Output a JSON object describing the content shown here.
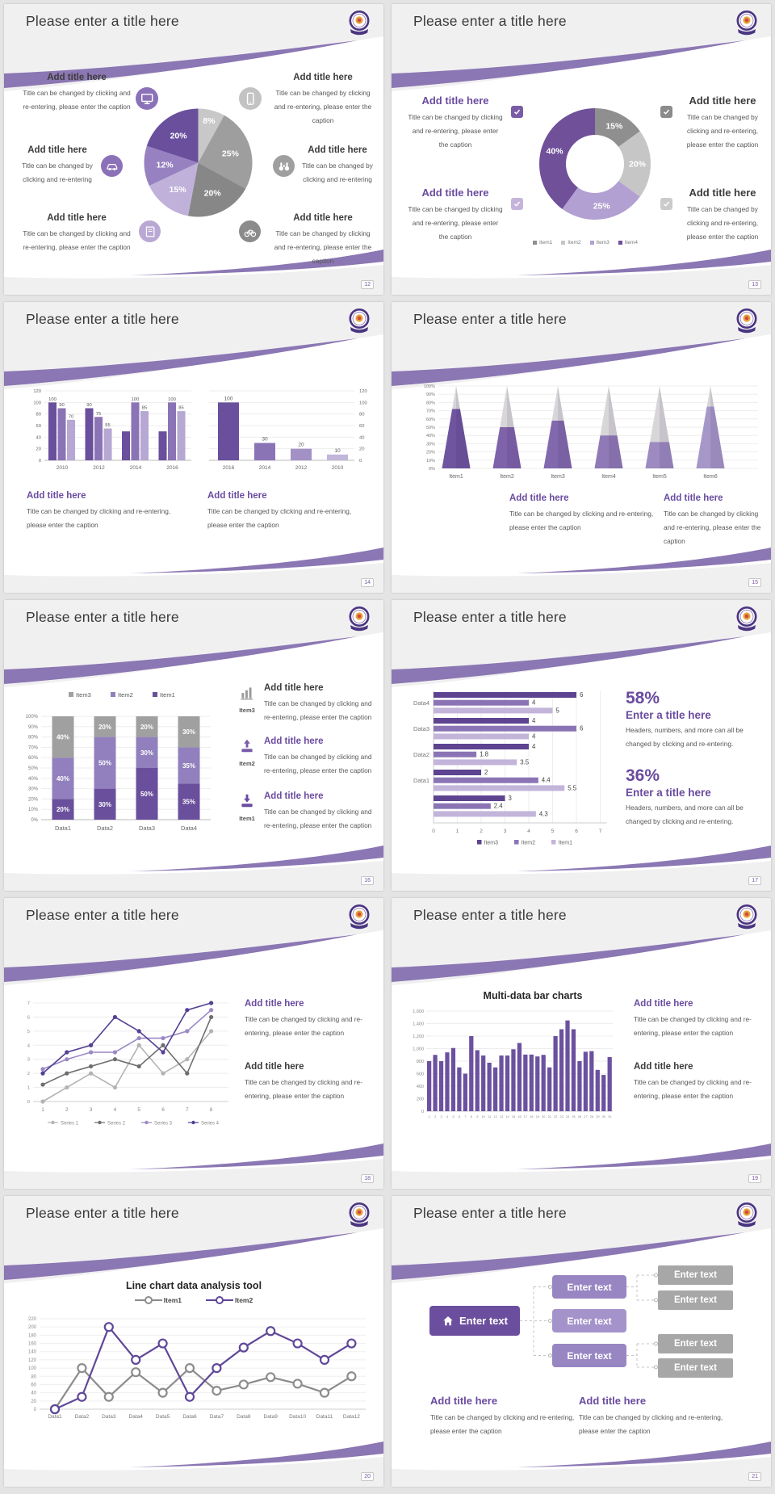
{
  "common": {
    "slide_title": "Please enter a title here",
    "add_title": "Add title here",
    "caption_long": "Title can be changed by clicking and re-entering, please enter the caption",
    "caption_short": "Title can be changed by clicking and re-entering",
    "stat_caption": "Headers, numbers, and more can all be changed by clicking and re-entering."
  },
  "colors": {
    "accent": "#6a4b9f",
    "wave": "#8b77b3",
    "band": "#f1f0f1",
    "purple_dark": "#6a4f9d",
    "purple_mid": "#8b74b5",
    "purple_light": "#b6a7d3",
    "gray_dark": "#878787",
    "gray_mid": "#9e9e9e",
    "gray_light": "#c8c8c8",
    "title_text": "#3a3a3a",
    "caption_text": "#575757"
  },
  "slides": [
    {
      "number": "12",
      "callouts": [
        {
          "icon": "monitor-icon",
          "icon_bg": "#8b72b8",
          "title": "Add title here",
          "title_color": "#3c3c3c",
          "caption": "Title can be changed by clicking and re-entering, please enter the caption"
        },
        {
          "icon": "car-icon",
          "icon_bg": "#8b72b8",
          "title": "Add title here",
          "title_color": "#3c3c3c",
          "caption": "Title can be changed by clicking and re-entering"
        },
        {
          "icon": "book-icon",
          "icon_bg": "#b9a8d4",
          "title": "Add title here",
          "title_color": "#3c3c3c",
          "caption": "Title can be changed by clicking and re-entering, please enter the caption"
        },
        {
          "icon": "phone-icon",
          "icon_bg": "#c3c3c3",
          "title": "Add title here",
          "title_color": "#3c3c3c",
          "caption": "Title can be changed by clicking and re-entering, please enter the caption"
        },
        {
          "icon": "binoculars-icon",
          "icon_bg": "#9f9f9f",
          "title": "Add title here",
          "title_color": "#3c3c3c",
          "caption": "Title can be changed by clicking and re-entering"
        },
        {
          "icon": "bicycle-icon",
          "icon_bg": "#8b8b8b",
          "title": "Add title here",
          "title_color": "#3c3c3c",
          "caption": "Title can be changed by clicking and re-entering, please enter the caption"
        }
      ]
    },
    {
      "number": "13",
      "callouts": [
        {
          "icon": "checkbox-icon",
          "icon_bg": "#7a5ca6",
          "title": "Add title here",
          "title_color": "#6a4b9f",
          "caption": "Title can be changed by clicking and re-entering, please enter the caption"
        },
        {
          "icon": "checkbox-icon",
          "icon_bg": "#8b8b8b",
          "title": "Add title here",
          "title_color": "#3c3c3c",
          "caption": "Title can be changed by clicking and re-entering, please enter the caption"
        },
        {
          "icon": "checkbox-icon",
          "icon_bg": "#c4b4da",
          "title": "Add title here",
          "title_color": "#6a4b9f",
          "caption": "Title can be changed by clicking and re-entering, please enter the caption"
        },
        {
          "icon": "checkbox-icon",
          "icon_bg": "#cbcbcb",
          "title": "Add title here",
          "title_color": "#3c3c3c",
          "caption": "Title can be changed by clicking and re-entering, please enter the caption"
        }
      ]
    },
    {
      "number": "14",
      "blocks": [
        {
          "title": "Add title here",
          "title_color": "#6a4b9f",
          "caption": "Title can be changed by clicking and re-entering, please enter the caption"
        },
        {
          "title": "Add title here",
          "title_color": "#6a4b9f",
          "caption": "Title can be changed by clicking and re-entering, please enter the caption"
        }
      ]
    },
    {
      "number": "15",
      "blocks": [
        {
          "title": "Add title here",
          "title_color": "#6a4b9f",
          "caption": "Title can be changed by clicking and re-entering, please enter the caption"
        },
        {
          "title": "Add title here",
          "title_color": "#6a4b9f",
          "caption": "Title can be changed by clicking and re-entering, please enter the caption"
        }
      ]
    },
    {
      "number": "16",
      "features": [
        {
          "icon": "bar-chart-icon",
          "icon_color": "#9a9a9a",
          "item": "Item3",
          "title": "Add title here",
          "title_color": "#3c3c3c",
          "caption": "Title can be changed by clicking and re-entering, please enter the caption"
        },
        {
          "icon": "arrow-up-tray-icon",
          "icon_color": "#7a5ca6",
          "item": "Item2",
          "title": "Add title here",
          "title_color": "#6a4b9f",
          "caption": "Title can be changed by clicking and re-entering, please enter the caption"
        },
        {
          "icon": "arrow-down-tray-icon",
          "icon_color": "#6a4b9f",
          "item": "Item1",
          "title": "Add title here",
          "title_color": "#6a4b9f",
          "caption": "Title can be changed by clicking and re-entering, please enter the caption"
        }
      ]
    },
    {
      "number": "17",
      "stats": [
        {
          "value": "58%",
          "title": "Enter a title here",
          "caption": "Headers, numbers, and more can all be changed by clicking and re-entering."
        },
        {
          "value": "36%",
          "title": "Enter a title here",
          "caption": "Headers, numbers, and more can all be changed by clicking and re-entering."
        }
      ]
    },
    {
      "number": "18",
      "blocks": [
        {
          "title": "Add title here",
          "title_color": "#6a4b9f",
          "caption": "Title can be changed by clicking and re-entering, please enter the caption"
        },
        {
          "title": "Add title here",
          "title_color": "#3c3c3c",
          "caption": "Title can be changed by clicking and re-entering, please enter the caption"
        }
      ]
    },
    {
      "number": "19",
      "blocks": [
        {
          "title": "Add title here",
          "title_color": "#6a4b9f",
          "caption": "Title can be changed by clicking and re-entering, please enter the caption"
        },
        {
          "title": "Add title here",
          "title_color": "#3c3c3c",
          "caption": "Title can be changed by clicking and re-entering, please enter the caption"
        }
      ]
    },
    {
      "number": "20"
    },
    {
      "number": "21",
      "diagram": {
        "root": "Enter text",
        "mid": [
          "Enter text",
          "Enter text",
          "Enter text"
        ],
        "leaf": [
          "Enter text",
          "Enter text",
          "Enter text",
          "Enter text"
        ]
      },
      "blocks": [
        {
          "title": "Add title here",
          "title_color": "#6a4b9f",
          "caption": "Title can be changed by clicking and re-entering, please enter the caption"
        },
        {
          "title": "Add title here",
          "title_color": "#6a4b9f",
          "caption": "Title can be changed by clicking and re-entering, please enter the caption"
        }
      ]
    }
  ],
  "chart_data": [
    {
      "slide": "12",
      "type": "pie",
      "values": [
        8,
        25,
        20,
        15,
        12,
        20
      ],
      "labels": [
        "8%",
        "25%",
        "20%",
        "15%",
        "12%",
        "20%"
      ],
      "colors": [
        "#c8c8c8",
        "#9e9e9e",
        "#878787",
        "#c0b1da",
        "#9781c0",
        "#6a4f9d"
      ]
    },
    {
      "slide": "13",
      "type": "pie",
      "subtype": "donut",
      "values": [
        15,
        20,
        25,
        40
      ],
      "labels": [
        "15%",
        "20%",
        "25%",
        "40%"
      ],
      "colors": [
        "#8f8f8f",
        "#c6c6c6",
        "#b3a0d2",
        "#6f5099"
      ],
      "legend": [
        "Item1",
        "Item2",
        "Item3",
        "Item4"
      ],
      "legend_position": "bottom"
    },
    {
      "slide": "14",
      "position": "left",
      "type": "bar",
      "categories": [
        "2010",
        "2012",
        "2014",
        "2016"
      ],
      "series": [
        {
          "name": "series1",
          "color": "#6a4f9d",
          "values": [
            100,
            90,
            50,
            50
          ],
          "labels": [
            "100",
            "90",
            null,
            null
          ]
        },
        {
          "name": "series2",
          "color": "#8b74b5",
          "values": [
            90,
            75,
            100,
            100
          ],
          "labels": [
            "90",
            "75",
            "100",
            "100"
          ]
        },
        {
          "name": "series3",
          "color": "#b6a7d3",
          "values": [
            70,
            55,
            85,
            85
          ],
          "labels": [
            "70",
            "55",
            "85",
            "85"
          ]
        }
      ],
      "ylim": [
        0,
        120
      ],
      "ystep": 20,
      "yaxis_side": "left",
      "grid": true
    },
    {
      "slide": "14",
      "position": "right",
      "type": "bar",
      "categories": [
        "2016",
        "2014",
        "2012",
        "2010"
      ],
      "values": [
        100,
        30,
        20,
        10
      ],
      "labels": [
        "100",
        "30",
        "20",
        "10"
      ],
      "bar_colors": [
        "#6a4f9d",
        "#8b74b5",
        "#a391c6",
        "#c2b5da"
      ],
      "ylim": [
        0,
        120
      ],
      "ystep": 20,
      "yaxis_side": "right",
      "grid": true
    },
    {
      "slide": "15",
      "type": "bar",
      "subtype": "cone",
      "categories": [
        "Item1",
        "Item2",
        "Item3",
        "Item4",
        "Item5",
        "Item6"
      ],
      "values": [
        72,
        50,
        58,
        40,
        32,
        75
      ],
      "colors": [
        "#6f549f",
        "#7e63ab",
        "#8269ad",
        "#8f7ab7",
        "#9c8ac0",
        "#a697c9"
      ],
      "cone_bg": "#d8d6d9",
      "ylim": [
        0,
        100
      ],
      "ystep": 10,
      "ytick_suffix": "%",
      "grid": true
    },
    {
      "slide": "16",
      "type": "bar",
      "subtype": "stacked",
      "categories": [
        "Data1",
        "Data2",
        "Data3",
        "Data4"
      ],
      "series": [
        {
          "name": "Item1",
          "color": "#6a4f9d",
          "values": [
            20,
            30,
            50,
            35
          ]
        },
        {
          "name": "Item2",
          "color": "#9180bd",
          "values": [
            40,
            50,
            30,
            35
          ]
        },
        {
          "name": "Item3",
          "color": "#a0a0a0",
          "values": [
            40,
            20,
            20,
            30
          ]
        }
      ],
      "legend_order": [
        "Item3",
        "Item2",
        "Item1"
      ],
      "legend_position": "top",
      "ylim": [
        0,
        100
      ],
      "ystep": 10,
      "ytick_suffix": "%",
      "label_suffix": "%",
      "grid": true
    },
    {
      "slide": "17",
      "type": "bar",
      "subtype": "horizontal",
      "groups": [
        {
          "label": "Data4",
          "values": [
            6,
            4,
            5
          ]
        },
        {
          "label": "Data3",
          "values": [
            4,
            6,
            4
          ]
        },
        {
          "label": "Data2",
          "values": [
            4,
            1.8,
            3.5
          ]
        },
        {
          "label": "Data1",
          "values": [
            2,
            4.4,
            5.5
          ]
        },
        {
          "label": "",
          "values": [
            3,
            2.4,
            4.3
          ]
        }
      ],
      "series_names": [
        "Item3",
        "Item2",
        "Item1"
      ],
      "colors": [
        "#5d4390",
        "#8b74b5",
        "#c3b4da"
      ],
      "xlim": [
        0,
        7
      ],
      "xstep": 1,
      "legend_position": "bottom",
      "grid": true
    },
    {
      "slide": "18",
      "type": "line",
      "x": [
        "1",
        "2",
        "3",
        "4",
        "5",
        "6",
        "7",
        "8"
      ],
      "series": [
        {
          "name": "Series 1",
          "color": "#b3b3b3",
          "values": [
            0,
            1,
            2,
            1,
            4,
            2,
            3,
            5
          ]
        },
        {
          "name": "Series 2",
          "color": "#6e6e6e",
          "values": [
            1.2,
            2,
            2.5,
            3,
            2.5,
            4,
            2,
            6
          ]
        },
        {
          "name": "Series 3",
          "color": "#9b89c5",
          "values": [
            2.3,
            3,
            3.5,
            3.5,
            4.5,
            4.5,
            5,
            6.5
          ]
        },
        {
          "name": "Series 4",
          "color": "#544094",
          "values": [
            2,
            3.5,
            4,
            6,
            5,
            3.5,
            6.5,
            7
          ]
        }
      ],
      "ylim": [
        0,
        7
      ],
      "ystep": 1,
      "legend_position": "bottom",
      "grid": true
    },
    {
      "slide": "19",
      "type": "bar",
      "title": "Multi-data bar charts",
      "x": [
        "1",
        "2",
        "3",
        "4",
        "5",
        "6",
        "7",
        "8",
        "9",
        "10",
        "11",
        "12",
        "13",
        "14",
        "15",
        "16",
        "17",
        "18",
        "19",
        "20",
        "21",
        "22",
        "23",
        "24",
        "25",
        "26",
        "27",
        "28",
        "29",
        "30",
        "31"
      ],
      "values": [
        800,
        900,
        800,
        940,
        1010,
        700,
        600,
        1200,
        975,
        890,
        775,
        700,
        890,
        890,
        990,
        1090,
        905,
        905,
        875,
        900,
        700,
        1200,
        1310,
        1450,
        1310,
        800,
        950,
        960,
        660,
        580,
        865
      ],
      "color": "#6b519f",
      "ylim": [
        0,
        1600
      ],
      "ystep": 200,
      "ytick_labels": [
        "0",
        "200",
        "400",
        "600",
        "800",
        "1,000",
        "1,200",
        "1,400",
        "1,600"
      ],
      "grid": true
    },
    {
      "slide": "20",
      "type": "line",
      "title": "Line chart data analysis tool",
      "x": [
        "Data1",
        "Data2",
        "Data3",
        "Data4",
        "Data5",
        "Data6",
        "Data7",
        "Data8",
        "Data9",
        "Data10",
        "Data11",
        "Data12"
      ],
      "series": [
        {
          "name": "Item1",
          "color": "#8c8c8c",
          "values": [
            0,
            100,
            30,
            90,
            40,
            100,
            45,
            60,
            78,
            62,
            40,
            80
          ]
        },
        {
          "name": "Item2",
          "color": "#5f4798",
          "values": [
            0,
            30,
            200,
            120,
            160,
            30,
            100,
            150,
            190,
            160,
            120,
            160
          ]
        }
      ],
      "ylim": [
        0,
        220
      ],
      "ystep": 20,
      "marker": "open-circle",
      "legend_position": "top",
      "grid": true
    }
  ]
}
